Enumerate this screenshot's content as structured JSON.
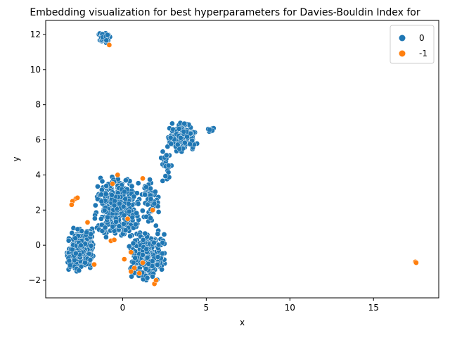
{
  "chart_data": {
    "type": "scatter",
    "title": "Embedding visualization for best hyperparameters for Davies-Bouldin Index for",
    "xlabel": "x",
    "ylabel": "y",
    "xlim": [
      -4.6,
      18.9
    ],
    "ylim": [
      -3.0,
      12.8
    ],
    "xticks": [
      0,
      5,
      10,
      15
    ],
    "yticks": [
      -2,
      0,
      2,
      4,
      6,
      8,
      10,
      12
    ],
    "grid": false,
    "legend": {
      "position": "top-right",
      "title": ""
    },
    "colors": {
      "0": "#1f77b4",
      "-1": "#ff7f0e"
    },
    "series": [
      {
        "name": "0",
        "color": "#1f77b4",
        "clusters": [
          {
            "region": "main-left",
            "x": [
              -3.4,
              -1.6
            ],
            "y": [
              -1.5,
              1.0
            ],
            "count": 240
          },
          {
            "region": "main-center",
            "x": [
              -1.8,
              1.2
            ],
            "y": [
              0.3,
              3.9
            ],
            "count": 320
          },
          {
            "region": "main-right",
            "x": [
              0.3,
              2.6
            ],
            "y": [
              -2.1,
              1.0
            ],
            "count": 260
          },
          {
            "region": "upper-right",
            "x": [
              1.0,
              2.2
            ],
            "y": [
              1.0,
              3.9
            ],
            "count": 60
          },
          {
            "region": "neck",
            "x": [
              2.2,
              3.0
            ],
            "y": [
              3.5,
              5.8
            ],
            "count": 25
          },
          {
            "region": "top-right-blob",
            "x": [
              2.6,
              4.5
            ],
            "y": [
              5.3,
              7.0
            ],
            "count": 200
          },
          {
            "region": "tail",
            "x": [
              4.8,
              5.6
            ],
            "y": [
              6.4,
              6.7
            ],
            "count": 8
          },
          {
            "region": "top-island",
            "x": [
              -1.5,
              -0.7
            ],
            "y": [
              11.5,
              12.1
            ],
            "count": 45
          }
        ]
      },
      {
        "name": "-1",
        "color": "#ff7f0e",
        "points": [
          [
            -0.8,
            11.4
          ],
          [
            -2.8,
            2.65
          ],
          [
            -3.0,
            2.5
          ],
          [
            -3.05,
            2.3
          ],
          [
            -2.7,
            2.7
          ],
          [
            -2.1,
            1.3
          ],
          [
            -1.7,
            -1.1
          ],
          [
            -0.7,
            0.25
          ],
          [
            -0.5,
            0.3
          ],
          [
            -0.3,
            4.0
          ],
          [
            -0.6,
            3.5
          ],
          [
            0.1,
            -0.8
          ],
          [
            0.5,
            -0.4
          ],
          [
            0.7,
            -1.3
          ],
          [
            0.5,
            -1.5
          ],
          [
            1.0,
            -1.6
          ],
          [
            1.2,
            -1.0
          ],
          [
            1.8,
            2.0
          ],
          [
            1.9,
            -2.2
          ],
          [
            2.0,
            -2.0
          ],
          [
            1.2,
            3.8
          ],
          [
            0.3,
            1.5
          ],
          [
            17.5,
            -0.95
          ],
          [
            17.55,
            -1.0
          ]
        ]
      }
    ]
  }
}
